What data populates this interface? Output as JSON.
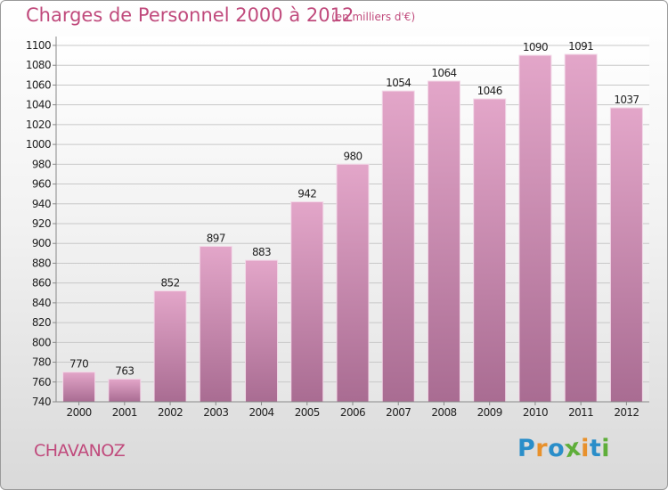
{
  "header": {
    "title": "Charges de Personnel 2000 à 2012",
    "unit_note": "(en milliers d'€)"
  },
  "footer": {
    "commune": "CHAVANOZ",
    "logo": {
      "letters": [
        "P",
        "r",
        "o",
        "x",
        "i",
        "t",
        "i"
      ],
      "colors": [
        "#2a8ec9",
        "#e8912c",
        "#2a8ec9",
        "#5fae3a",
        "#e8912c",
        "#2a8ec9",
        "#5fae3a"
      ]
    }
  },
  "chart_data": {
    "type": "bar",
    "categories": [
      "2000",
      "2001",
      "2002",
      "2003",
      "2004",
      "2005",
      "2006",
      "2007",
      "2008",
      "2009",
      "2010",
      "2011",
      "2012"
    ],
    "values": [
      770,
      763,
      852,
      897,
      883,
      942,
      980,
      1054,
      1064,
      1046,
      1090,
      1091,
      1037
    ],
    "data_labels": [
      "770",
      "763",
      "852",
      "897",
      "883",
      "942",
      "980",
      "1054",
      "1064",
      "1046",
      "1090",
      "1091",
      "1037"
    ],
    "title": "Charges de Personnel 2000 à 2012",
    "xlabel": "",
    "ylabel": "",
    "ylim": [
      740,
      1100
    ],
    "yticks": [
      740,
      760,
      780,
      800,
      820,
      840,
      860,
      880,
      900,
      920,
      940,
      960,
      980,
      1000,
      1020,
      1040,
      1060,
      1080,
      1100
    ],
    "grid": true,
    "bar_color_top": "#e3a6c9",
    "bar_color_bottom": "#a96c92",
    "accent_color": "#c04a7c"
  }
}
